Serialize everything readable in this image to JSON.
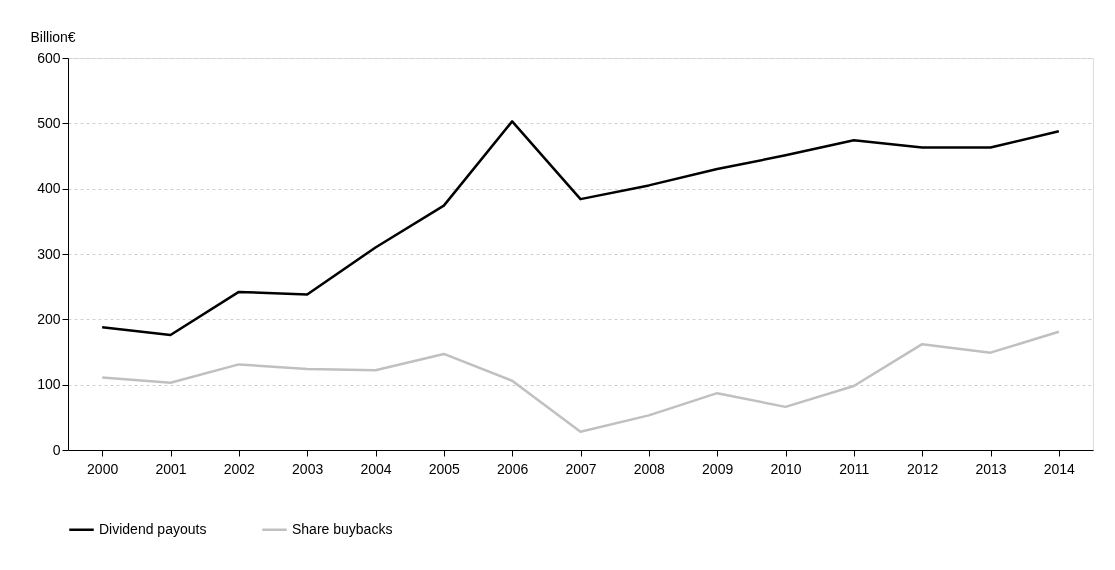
{
  "chart_data": {
    "type": "line",
    "ylabel": "Billion€",
    "categories": [
      "2000",
      "2001",
      "2002",
      "2003",
      "2004",
      "2005",
      "2006",
      "2007",
      "2008",
      "2009",
      "2010",
      "2011",
      "2012",
      "2013",
      "2014"
    ],
    "series": [
      {
        "name": "Dividend payouts",
        "color": "#000000",
        "values": [
          188,
          176,
          242,
          238,
          310,
          374,
          503,
          384,
          405,
          430,
          451,
          474,
          463,
          463,
          488
        ]
      },
      {
        "name": "Share buybacks",
        "color": "#c0c0c0",
        "values": [
          111,
          103,
          131,
          124,
          122,
          147,
          106,
          28,
          53,
          87,
          66,
          98,
          162,
          149,
          181
        ]
      }
    ],
    "ylim": [
      0,
      600
    ],
    "yticks": [
      0,
      100,
      200,
      300,
      400,
      500,
      600
    ],
    "grid": "y",
    "legend": "bottom",
    "marker": "none",
    "line_style": "solid"
  }
}
